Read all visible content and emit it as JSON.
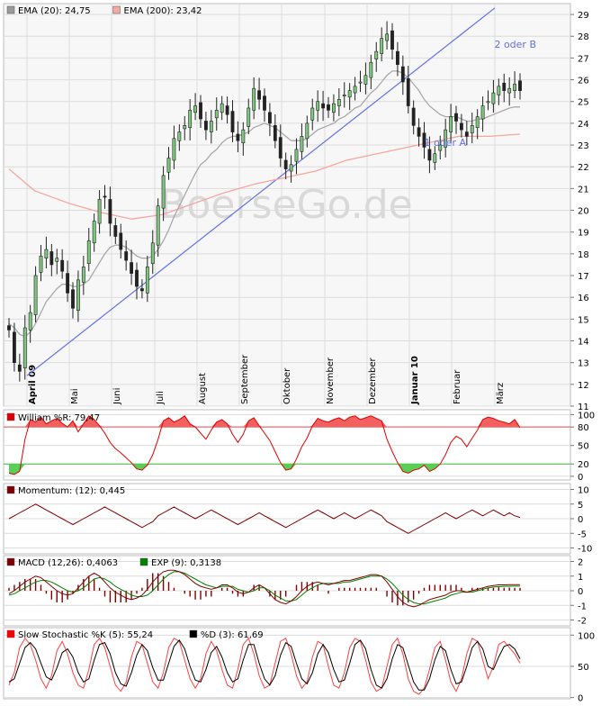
{
  "watermark": "BoerseGo.de",
  "chart_data": [
    {
      "type": "candlestick",
      "panel": "price",
      "legend": [
        {
          "name": "EMA (20): 24,75",
          "color": "#9a9a9a"
        },
        {
          "name": "EMA (200): 23,42",
          "color": "#f4a6a0"
        }
      ],
      "ylim": [
        11,
        29.5
      ],
      "yticks": [
        "11",
        "12",
        "13",
        "14",
        "15",
        "16",
        "17",
        "18",
        "19",
        "20",
        "21",
        "22",
        "23",
        "24",
        "25",
        "26",
        "27",
        "28",
        "29"
      ],
      "months": [
        "April 09",
        "Mai",
        "Juni",
        "Juli",
        "August",
        "September",
        "Oktober",
        "November",
        "Dezember",
        "Januar 10",
        "Februar",
        "März"
      ],
      "annotations": [
        "2 oder B",
        "1 oder A"
      ],
      "trendline": [
        [
          0,
          12.4
        ],
        [
          100,
          29.3
        ]
      ],
      "ema200": [
        [
          0,
          21.9
        ],
        [
          5,
          20.9
        ],
        [
          12,
          20.3
        ],
        [
          18,
          19.9
        ],
        [
          24,
          19.6
        ],
        [
          30,
          19.8
        ],
        [
          36,
          20.3
        ],
        [
          42,
          20.8
        ],
        [
          48,
          21.2
        ],
        [
          54,
          21.5
        ],
        [
          60,
          21.8
        ],
        [
          66,
          22.3
        ],
        [
          72,
          22.6
        ],
        [
          78,
          22.9
        ],
        [
          84,
          23.2
        ],
        [
          88,
          23.4
        ],
        [
          94,
          23.4
        ],
        [
          100,
          23.5
        ]
      ],
      "close": [
        14.5,
        13.0,
        12.6,
        14.6,
        15.3,
        17.0,
        17.9,
        18.2,
        17.5,
        17.8,
        17.2,
        16.2,
        15.5,
        16.8,
        17.4,
        18.6,
        19.5,
        20.5,
        20.6,
        19.4,
        18.8,
        18.2,
        17.7,
        17.1,
        16.5,
        16.3,
        17.4,
        18.5,
        20.2,
        21.6,
        22.4,
        23.3,
        23.6,
        23.9,
        24.6,
        24.8,
        24.2,
        23.7,
        24.1,
        24.6,
        24.9,
        24.4,
        23.6,
        23.2,
        23.7,
        24.7,
        25.6,
        25.1,
        24.6,
        24.0,
        23.2,
        22.4,
        21.9,
        22.1,
        22.8,
        23.4,
        24.0,
        24.7,
        25.0,
        24.7,
        24.6,
        24.9,
        25.1,
        25.3,
        25.5,
        25.7,
        25.9,
        26.2,
        26.8,
        27.3,
        27.9,
        28.1,
        27.4,
        26.7,
        25.9,
        24.8,
        23.9,
        23.4,
        22.9,
        22.3,
        22.6,
        23.0,
        23.7,
        24.3,
        24.1,
        23.7,
        23.4,
        23.9,
        24.3,
        24.8,
        25.0,
        25.4,
        25.7,
        25.5,
        25.6,
        25.8,
        25.5
      ],
      "ema20": [
        14.8,
        14.6,
        14.3,
        14.2,
        14.4,
        14.8,
        15.3,
        15.8,
        16.1,
        16.4,
        16.6,
        16.6,
        16.5,
        16.5,
        16.6,
        16.8,
        17.2,
        17.6,
        18.0,
        18.3,
        18.4,
        18.4,
        18.3,
        18.1,
        17.9,
        17.8,
        17.8,
        17.9,
        18.2,
        18.6,
        19.1,
        19.7,
        20.2,
        20.7,
        21.2,
        21.7,
        22.1,
        22.3,
        22.6,
        22.8,
        23.1,
        23.3,
        23.4,
        23.4,
        23.5,
        23.6,
        23.8,
        23.9,
        24.0,
        23.9,
        23.8,
        23.6,
        23.4,
        23.2,
        23.2,
        23.2,
        23.3,
        23.5,
        23.7,
        23.8,
        23.9,
        24.0,
        24.2,
        24.3,
        24.5,
        24.7,
        24.8,
        25.1,
        25.4,
        25.6,
        25.9,
        26.2,
        26.4,
        26.4,
        26.3,
        26.1,
        25.8,
        25.5,
        25.1,
        24.8,
        24.6,
        24.4,
        24.3,
        24.3,
        24.3,
        24.2,
        24.1,
        24.1,
        24.2,
        24.2,
        24.3,
        24.4,
        24.5,
        24.6,
        24.7,
        24.75,
        24.75
      ]
    },
    {
      "type": "line",
      "panel": "william",
      "legend": [
        {
          "name": "William %R: 79,47",
          "color": "#e00000"
        }
      ],
      "ylim": [
        0,
        100
      ],
      "yticks": [
        "0",
        "20",
        "50",
        "80",
        "100"
      ],
      "levels": [
        20,
        80
      ],
      "values": [
        5,
        3,
        8,
        60,
        92,
        88,
        96,
        85,
        90,
        94,
        86,
        80,
        90,
        72,
        85,
        98,
        92,
        82,
        70,
        55,
        45,
        38,
        30,
        22,
        12,
        10,
        18,
        35,
        60,
        90,
        95,
        88,
        92,
        98,
        85,
        80,
        70,
        60,
        75,
        88,
        92,
        85,
        68,
        55,
        68,
        90,
        95,
        82,
        70,
        58,
        40,
        22,
        10,
        12,
        28,
        48,
        62,
        82,
        94,
        90,
        88,
        92,
        95,
        90,
        96,
        98,
        92,
        95,
        98,
        94,
        90,
        60,
        40,
        22,
        8,
        5,
        10,
        12,
        18,
        8,
        12,
        20,
        35,
        55,
        65,
        60,
        48,
        62,
        75,
        92,
        96,
        94,
        90,
        88,
        85,
        92,
        79
      ]
    },
    {
      "type": "line",
      "panel": "momentum",
      "legend": [
        {
          "name": "Momentum: (12): 0,445",
          "color": "#800000"
        }
      ],
      "ylim": [
        -12,
        12
      ],
      "yticks": [
        "-10",
        "-5",
        "0",
        "5",
        "10"
      ],
      "values": [
        0,
        1,
        2,
        3,
        4,
        5,
        4,
        3,
        2,
        1,
        0,
        -1,
        -2,
        -1,
        0,
        1,
        2,
        3,
        4,
        3,
        2,
        1,
        0,
        -1,
        -2,
        -3,
        -2,
        -1,
        1,
        2,
        3,
        4,
        3,
        2,
        1,
        0,
        1,
        2,
        3,
        2,
        1,
        0,
        -1,
        -2,
        -1,
        0,
        1,
        2,
        1,
        0,
        -1,
        -2,
        -3,
        -2,
        -1,
        0,
        1,
        2,
        3,
        2,
        1,
        0,
        1,
        2,
        1,
        0,
        1,
        2,
        3,
        2,
        1,
        -1,
        -2,
        -3,
        -4,
        -5,
        -4,
        -3,
        -2,
        -1,
        0,
        1,
        2,
        1,
        0,
        1,
        2,
        3,
        2,
        1,
        2,
        3,
        2,
        1,
        2,
        1,
        0.445
      ]
    },
    {
      "type": "line",
      "panel": "macd",
      "legend": [
        {
          "name": "MACD (12,26): 0,4063",
          "color": "#800000"
        },
        {
          "name": "EXP (9): 0,3138",
          "color": "#008000"
        }
      ],
      "ylim": [
        -2.4,
        2.4
      ],
      "yticks": [
        "-2",
        "-1",
        "0",
        "1",
        "2"
      ],
      "macd": [
        -0.2,
        0.0,
        0.3,
        0.6,
        0.8,
        1.0,
        0.9,
        0.6,
        0.3,
        0.0,
        -0.2,
        -0.3,
        -0.2,
        0.2,
        0.6,
        1.0,
        1.2,
        1.0,
        0.6,
        0.2,
        -0.1,
        -0.3,
        -0.5,
        -0.6,
        -0.5,
        -0.3,
        0.1,
        0.6,
        1.0,
        1.3,
        1.4,
        1.4,
        1.3,
        1.1,
        0.8,
        0.5,
        0.3,
        0.2,
        0.1,
        0.2,
        0.4,
        0.4,
        0.2,
        -0.1,
        -0.2,
        -0.1,
        0.2,
        0.4,
        0.2,
        -0.2,
        -0.6,
        -0.8,
        -0.9,
        -0.7,
        -0.4,
        0.0,
        0.3,
        0.5,
        0.6,
        0.5,
        0.4,
        0.5,
        0.6,
        0.7,
        0.7,
        0.8,
        0.9,
        1.0,
        1.1,
        1.1,
        1.0,
        0.6,
        0.1,
        -0.4,
        -0.8,
        -1.0,
        -1.1,
        -1.0,
        -0.8,
        -0.6,
        -0.5,
        -0.4,
        -0.3,
        -0.1,
        0.0,
        0.0,
        -0.1,
        0.0,
        0.1,
        0.2,
        0.3,
        0.35,
        0.4,
        0.4,
        0.42,
        0.41,
        0.41
      ],
      "signal": [
        -0.3,
        -0.2,
        0.0,
        0.2,
        0.4,
        0.6,
        0.7,
        0.7,
        0.6,
        0.4,
        0.2,
        0.0,
        -0.1,
        0.0,
        0.2,
        0.5,
        0.8,
        0.9,
        0.8,
        0.6,
        0.3,
        0.1,
        -0.1,
        -0.3,
        -0.4,
        -0.4,
        -0.3,
        0.0,
        0.4,
        0.8,
        1.1,
        1.3,
        1.3,
        1.2,
        1.0,
        0.8,
        0.6,
        0.4,
        0.3,
        0.2,
        0.3,
        0.3,
        0.3,
        0.1,
        0.0,
        -0.1,
        0.0,
        0.2,
        0.2,
        0.0,
        -0.3,
        -0.5,
        -0.7,
        -0.7,
        -0.6,
        -0.3,
        0.0,
        0.2,
        0.4,
        0.5,
        0.5,
        0.5,
        0.5,
        0.6,
        0.6,
        0.7,
        0.8,
        0.9,
        1.0,
        1.0,
        1.0,
        0.8,
        0.5,
        0.1,
        -0.3,
        -0.6,
        -0.8,
        -0.9,
        -0.9,
        -0.8,
        -0.7,
        -0.6,
        -0.5,
        -0.3,
        -0.2,
        -0.1,
        -0.1,
        -0.1,
        0.0,
        0.1,
        0.2,
        0.25,
        0.28,
        0.3,
        0.31,
        0.313,
        0.314
      ]
    },
    {
      "type": "line",
      "panel": "stochastic",
      "legend": [
        {
          "name": "Slow Stochastic %K (5): 55,24",
          "color": "#ff0000"
        },
        {
          "name": "%D (3): 61,69",
          "color": "#000000"
        }
      ],
      "ylim": [
        0,
        100
      ],
      "yticks": [
        "0",
        "50",
        "100"
      ],
      "k": [
        20,
        40,
        80,
        95,
        85,
        60,
        30,
        15,
        35,
        75,
        90,
        70,
        40,
        20,
        15,
        45,
        85,
        95,
        80,
        50,
        20,
        10,
        25,
        65,
        90,
        85,
        55,
        25,
        15,
        40,
        80,
        95,
        90,
        60,
        30,
        15,
        30,
        70,
        90,
        75,
        45,
        20,
        15,
        45,
        85,
        95,
        70,
        35,
        15,
        20,
        55,
        90,
        95,
        70,
        35,
        15,
        25,
        65,
        90,
        85,
        50,
        20,
        15,
        40,
        80,
        95,
        90,
        60,
        25,
        10,
        15,
        50,
        85,
        95,
        70,
        30,
        10,
        5,
        15,
        45,
        80,
        90,
        60,
        25,
        10,
        30,
        70,
        95,
        90,
        60,
        30,
        50,
        85,
        90,
        80,
        70,
        55
      ],
      "d": [
        25,
        30,
        55,
        80,
        88,
        78,
        55,
        33,
        28,
        48,
        72,
        78,
        65,
        40,
        25,
        30,
        60,
        85,
        88,
        70,
        40,
        22,
        18,
        40,
        68,
        85,
        75,
        48,
        28,
        28,
        55,
        82,
        92,
        78,
        50,
        28,
        25,
        45,
        72,
        82,
        65,
        40,
        25,
        30,
        60,
        85,
        85,
        55,
        30,
        20,
        35,
        68,
        88,
        82,
        55,
        30,
        22,
        40,
        70,
        85,
        72,
        45,
        25,
        28,
        55,
        85,
        92,
        78,
        45,
        20,
        15,
        30,
        62,
        85,
        80,
        52,
        25,
        12,
        12,
        30,
        60,
        82,
        75,
        45,
        22,
        25,
        50,
        80,
        90,
        78,
        50,
        45,
        65,
        82,
        85,
        78,
        62
      ]
    }
  ]
}
